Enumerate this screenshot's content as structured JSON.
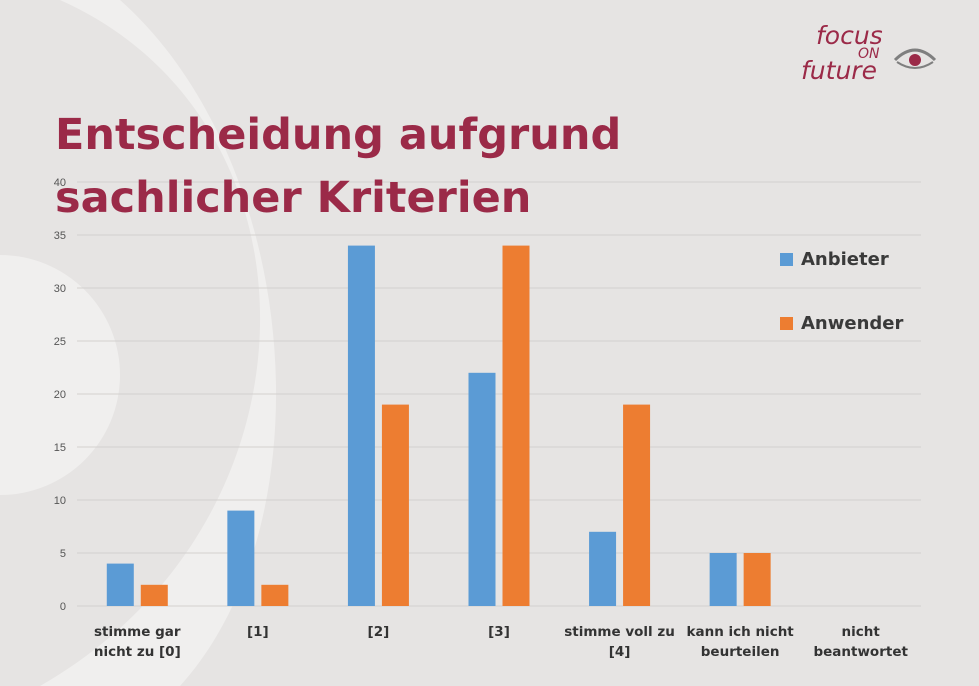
{
  "slide": {
    "title": "Entscheidung aufgrund sachlicher Kriterien"
  },
  "logo": {
    "word1": "focus",
    "word2": "ON",
    "word3": "future",
    "icon": "eye-icon",
    "color": "#9b2a48"
  },
  "colors": {
    "background": "#e6e4e3",
    "title": "#9b2a48",
    "anbieter": "#5b9bd5",
    "anwender": "#ed7d31"
  },
  "chart_data": {
    "type": "bar",
    "categories": [
      "stimme gar nicht zu [0]",
      "[1]",
      "[2]",
      "[3]",
      "stimme voll zu [4]",
      "kann ich nicht beurteilen",
      "nicht beantwortet"
    ],
    "series": [
      {
        "name": "Anbieter",
        "values": [
          4,
          9,
          34,
          22,
          7,
          5,
          0
        ]
      },
      {
        "name": "Anwender",
        "values": [
          2,
          2,
          19,
          34,
          19,
          5,
          0
        ]
      }
    ],
    "ylim": [
      0,
      40
    ],
    "yticks": [
      "0",
      "5",
      "10",
      "15",
      "20",
      "25",
      "30",
      "35",
      "40"
    ],
    "grid": true,
    "legend": "right"
  }
}
